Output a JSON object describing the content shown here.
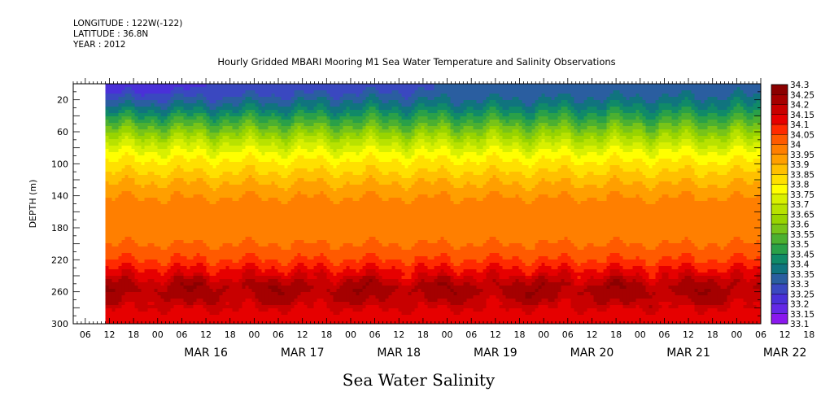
{
  "header": {
    "longitude": "LONGITUDE : 122W(-122)",
    "latitude": "LATITUDE : 36.8N",
    "year": "YEAR : 2012"
  },
  "chart_data": {
    "type": "heatmap",
    "title": "Hourly Gridded MBARI Mooring M1 Sea Water Temperature and Salinity Observations",
    "bottom_title": "Sea Water Salinity",
    "ylabel": "DEPTH (m)",
    "xlabel": "",
    "ylim": [
      300,
      0
    ],
    "y_ticks": [
      20,
      60,
      100,
      140,
      180,
      220,
      260,
      300
    ],
    "x_range": [
      "2012-03-15T03:00",
      "2012-03-22T06:00"
    ],
    "x_tick_hours": [
      "06",
      "12",
      "18",
      "00",
      "06",
      "12",
      "18",
      "00",
      "06",
      "12",
      "18",
      "00",
      "06",
      "12",
      "18",
      "00",
      "06",
      "12",
      "18",
      "00",
      "06",
      "12",
      "18",
      "00",
      "06",
      "12",
      "18",
      "00",
      "06",
      "12",
      "18",
      "00"
    ],
    "x_day_labels": [
      "MAR 16",
      "MAR 17",
      "MAR 18",
      "MAR 19",
      "MAR 20",
      "MAR 21",
      "MAR 22"
    ],
    "data_start": "2012-03-15T11:00",
    "colorbar": {
      "levels": [
        "34.3",
        "34.25",
        "34.2",
        "34.15",
        "34.1",
        "34.05",
        "34",
        "33.95",
        "33.9",
        "33.85",
        "33.8",
        "33.75",
        "33.7",
        "33.65",
        "33.6",
        "33.55",
        "33.5",
        "33.45",
        "33.4",
        "33.35",
        "33.3",
        "33.25",
        "33.2",
        "33.15",
        "33.1"
      ],
      "colors": [
        "#8b0000",
        "#a50000",
        "#c80000",
        "#e60000",
        "#ff2a00",
        "#ff5a00",
        "#ff7f00",
        "#ff9f00",
        "#ffc000",
        "#ffe000",
        "#ffff00",
        "#d8f000",
        "#b8e200",
        "#98d400",
        "#78c418",
        "#4cb030",
        "#2aa048",
        "#108a68",
        "#10747e",
        "#2a5ea0",
        "#3a48c0",
        "#4a30d8",
        "#6428e6",
        "#8a18ee",
        "#bb00ff"
      ]
    },
    "salinity_profile": [
      {
        "depth": 10,
        "value": 33.35
      },
      {
        "depth": 30,
        "value": 33.45
      },
      {
        "depth": 50,
        "value": 33.58
      },
      {
        "depth": 70,
        "value": 33.72
      },
      {
        "depth": 90,
        "value": 33.83
      },
      {
        "depth": 110,
        "value": 33.9
      },
      {
        "depth": 130,
        "value": 33.97
      },
      {
        "depth": 150,
        "value": 34.02
      },
      {
        "depth": 190,
        "value": 34.03
      },
      {
        "depth": 210,
        "value": 34.07
      },
      {
        "depth": 225,
        "value": 34.12
      },
      {
        "depth": 240,
        "value": 34.2
      },
      {
        "depth": 255,
        "value": 34.28
      },
      {
        "depth": 270,
        "value": 34.25
      },
      {
        "depth": 285,
        "value": 34.18
      },
      {
        "depth": 300,
        "value": 34.16
      }
    ]
  }
}
